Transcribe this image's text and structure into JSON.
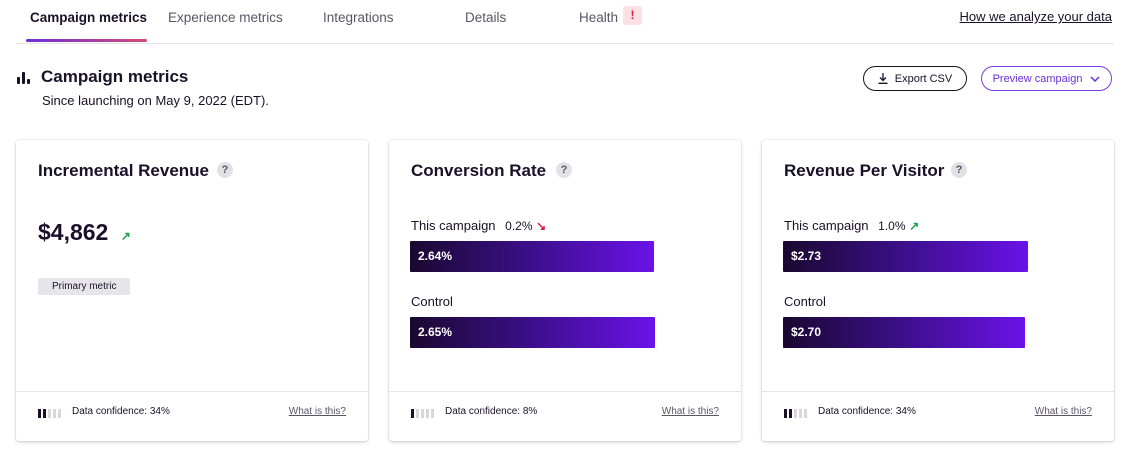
{
  "tabs": [
    {
      "label": "Campaign metrics"
    },
    {
      "label": "Experience metrics"
    },
    {
      "label": "Integrations"
    },
    {
      "label": "Details"
    },
    {
      "label": "Health",
      "alert": "!"
    }
  ],
  "analyze_link": "How we analyze your data",
  "header": {
    "icon": "bar-chart-icon",
    "title": "Campaign metrics",
    "subtitle": "Since launching on May 9, 2022 (EDT).",
    "export_label": "Export CSV",
    "export_icon": "download-icon",
    "preview_label": "Preview campaign",
    "preview_icon": "chevron-down-icon"
  },
  "cards": [
    {
      "title": "Incremental Revenue",
      "help": "?",
      "value": "$4,862",
      "trend": "↗",
      "badge": "Primary metric",
      "confidence_level": 2,
      "confidence_text": "Data confidence: 34%",
      "link": "What is this?"
    },
    {
      "title": "Conversion Rate",
      "help": "?",
      "campaign_label": "This campaign",
      "campaign_delta": "0.2%",
      "campaign_trend": "↘",
      "campaign_value": "2.64%",
      "campaign_fraction": 0.9962,
      "control_label": "Control",
      "control_value": "2.65%",
      "control_fraction": 1.0,
      "confidence_level": 1,
      "confidence_text": "Data confidence: 8%",
      "link": "What is this?"
    },
    {
      "title": "Revenue Per Visitor",
      "help": "?",
      "campaign_label": "This campaign",
      "campaign_delta": "1.0%",
      "campaign_trend": "↗",
      "campaign_value": "$2.73",
      "campaign_fraction": 1.0,
      "control_label": "Control",
      "control_value": "$2.70",
      "control_fraction": 0.989,
      "confidence_level": 2,
      "confidence_text": "Data confidence: 34%",
      "link": "What is this?"
    }
  ],
  "colors": {
    "accent": "#6b2fd6",
    "tab_gradient_end": "#d64a7a",
    "trend_up": "#1aa34a",
    "trend_down": "#d21f3c",
    "bar_dark": "#1a0830",
    "bar_light": "#6a12e8"
  }
}
